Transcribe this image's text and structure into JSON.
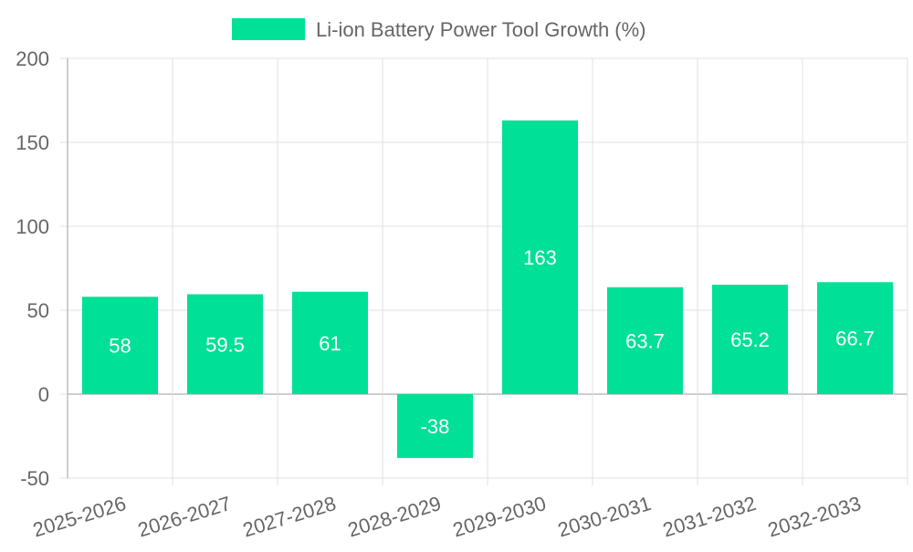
{
  "chart_data": {
    "type": "bar",
    "categories": [
      "2025-2026",
      "2026-2027",
      "2027-2028",
      "2028-2029",
      "2029-2030",
      "2030-2031",
      "2031-2032",
      "2032-2033"
    ],
    "series": [
      {
        "name": "Li-ion Battery Power Tool Growth (%)",
        "values": [
          58,
          59.5,
          61,
          -38,
          163,
          63.7,
          65.2,
          66.7
        ],
        "color": "#00e096"
      }
    ],
    "yticks": [
      200,
      150,
      100,
      50,
      0,
      -50
    ],
    "ylim": [
      -50,
      200
    ],
    "grid": true,
    "legend_position": "top",
    "data_label_color": "#ffffff",
    "axis_text_color": "#666666",
    "grid_color": "#e0e0e0"
  }
}
